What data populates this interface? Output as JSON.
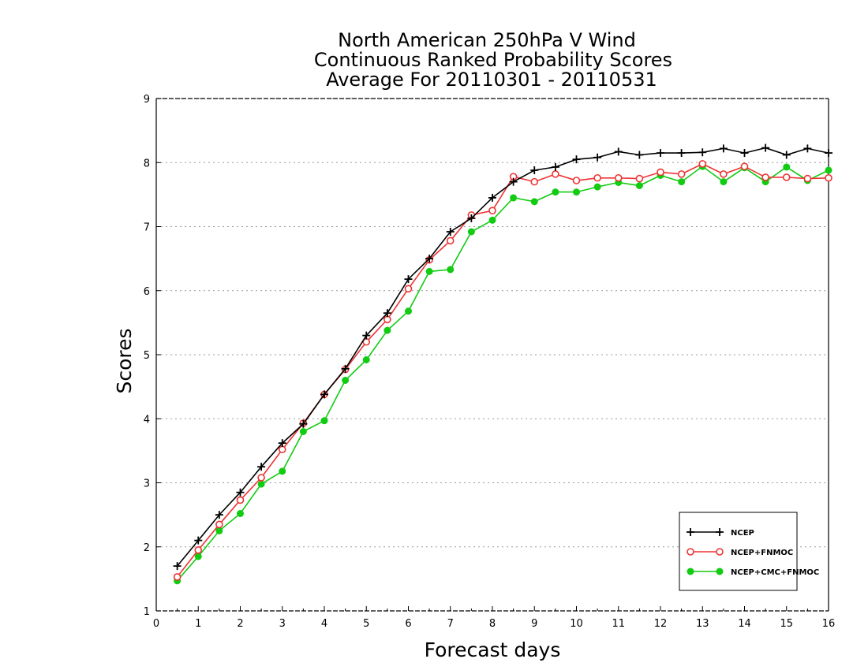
{
  "chart_data": {
    "type": "line",
    "title_lines": [
      "North American 250hPa V Wind",
      "Continuous Ranked Probability Scores",
      "Average For 20110301 - 20110531"
    ],
    "xlabel": "Forecast days",
    "ylabel": "Scores",
    "xlim": [
      0,
      16
    ],
    "ylim": [
      1,
      9
    ],
    "xticks": [
      "0",
      "1",
      "2",
      "3",
      "4",
      "5",
      "6",
      "7",
      "8",
      "9",
      "10",
      "11",
      "12",
      "13",
      "14",
      "15",
      "16"
    ],
    "yticks": [
      "1",
      "2",
      "3",
      "4",
      "5",
      "6",
      "7",
      "8",
      "9"
    ],
    "grid": "horizontal dotted",
    "legend_position": "bottom-right",
    "x": [
      0.5,
      1,
      1.5,
      2,
      2.5,
      3,
      3.5,
      4,
      4.5,
      5,
      5.5,
      6,
      6.5,
      7,
      7.5,
      8,
      8.5,
      9,
      9.5,
      10,
      10.5,
      11,
      11.5,
      12,
      12.5,
      13,
      13.5,
      14,
      14.5,
      15,
      15.5,
      16
    ],
    "series": [
      {
        "name": "NCEP",
        "color": "#000000",
        "marker": "plus",
        "values": [
          1.7,
          2.1,
          2.5,
          2.85,
          3.25,
          3.62,
          3.92,
          4.38,
          4.78,
          5.3,
          5.65,
          6.18,
          6.5,
          6.92,
          7.13,
          7.45,
          7.7,
          7.88,
          7.93,
          8.05,
          8.08,
          8.17,
          8.12,
          8.15,
          8.15,
          8.16,
          8.22,
          8.15,
          8.23,
          8.12,
          8.22,
          8.15
        ]
      },
      {
        "name": "NCEP+FNMOC",
        "color": "#ee3333",
        "marker": "open-circle",
        "values": [
          1.53,
          1.95,
          2.35,
          2.73,
          3.08,
          3.52,
          3.93,
          4.38,
          4.77,
          5.2,
          5.55,
          6.03,
          6.48,
          6.78,
          7.18,
          7.25,
          7.78,
          7.7,
          7.82,
          7.72,
          7.76,
          7.76,
          7.75,
          7.85,
          7.82,
          7.98,
          7.82,
          7.94,
          7.77,
          7.77,
          7.75,
          7.76
        ]
      },
      {
        "name": "NCEP+CMC+FNMOC",
        "color": "#11cc11",
        "marker": "filled-circle",
        "values": [
          1.47,
          1.85,
          2.25,
          2.52,
          2.98,
          3.18,
          3.8,
          3.97,
          4.6,
          4.92,
          5.38,
          5.68,
          6.3,
          6.33,
          6.92,
          7.1,
          7.45,
          7.39,
          7.54,
          7.54,
          7.62,
          7.69,
          7.64,
          7.8,
          7.7,
          7.94,
          7.7,
          7.92,
          7.7,
          7.93,
          7.72,
          7.88
        ]
      }
    ]
  }
}
